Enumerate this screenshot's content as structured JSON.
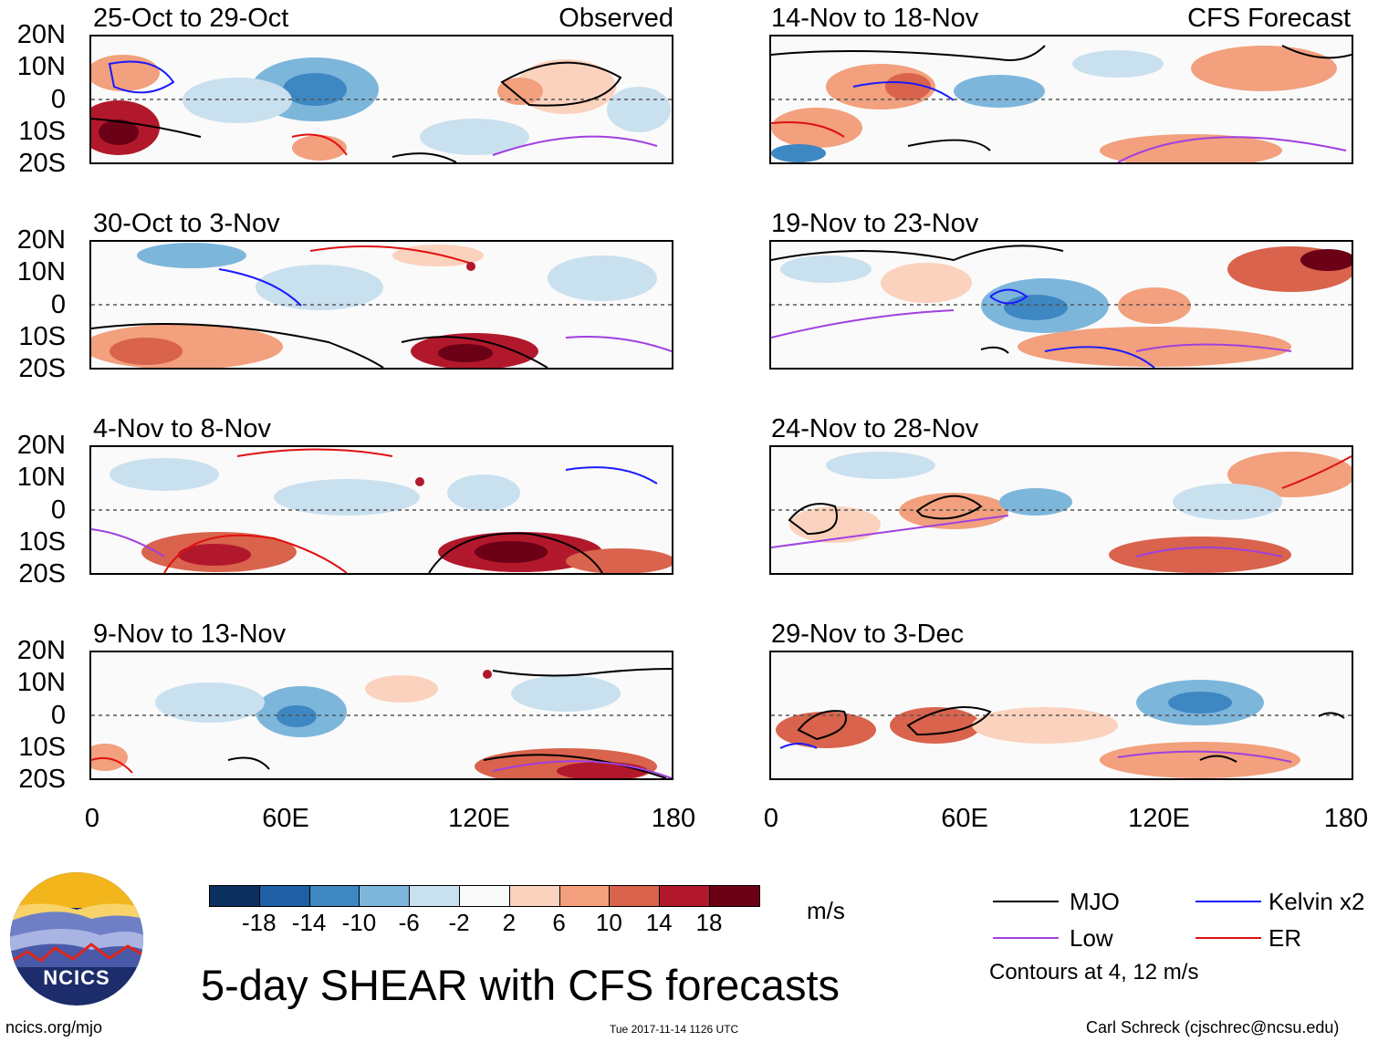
{
  "title": "5-day SHEAR with CFS forecasts",
  "observed_label": "Observed",
  "forecast_label": "CFS Forecast",
  "left_panels": [
    {
      "period": "25-Oct to 29-Oct"
    },
    {
      "period": "30-Oct to 3-Nov"
    },
    {
      "period": "4-Nov to 8-Nov"
    },
    {
      "period": "9-Nov to 13-Nov"
    }
  ],
  "right_panels": [
    {
      "period": "14-Nov to 18-Nov"
    },
    {
      "period": "19-Nov to 23-Nov"
    },
    {
      "period": "24-Nov to 28-Nov"
    },
    {
      "period": "29-Nov to 3-Dec"
    }
  ],
  "lat_ticks": [
    "20N",
    "10N",
    "0",
    "10S",
    "20S"
  ],
  "lon_ticks": [
    "0",
    "60E",
    "120E",
    "180"
  ],
  "colorbar": {
    "labels": [
      "-18",
      "-14",
      "-10",
      "-6",
      "-2",
      "2",
      "6",
      "10",
      "14",
      "18"
    ],
    "colors": [
      "#0b2f5f",
      "#1f5fa6",
      "#3d87c2",
      "#7db6db",
      "#c9e0ef",
      "#f9f9f9",
      "#fbd2bd",
      "#f2a07d",
      "#d9634c",
      "#b2182b",
      "#6b0016"
    ],
    "unit": "m/s"
  },
  "legend": {
    "items": [
      {
        "label": "MJO",
        "color": "#000000"
      },
      {
        "label": "Kelvin x2",
        "color": "#1a1aff"
      },
      {
        "label": "Low",
        "color": "#a040e0"
      },
      {
        "label": "ER",
        "color": "#e01010"
      }
    ],
    "note": "Contours at 4, 12 m/s"
  },
  "logo_text": "NCICS",
  "footer": {
    "url": "ncics.org/mjo",
    "timestamp": "Tue 2017-11-14 1126 UTC",
    "credit": "Carl Schreck (cjschrec@ncsu.edu)"
  }
}
